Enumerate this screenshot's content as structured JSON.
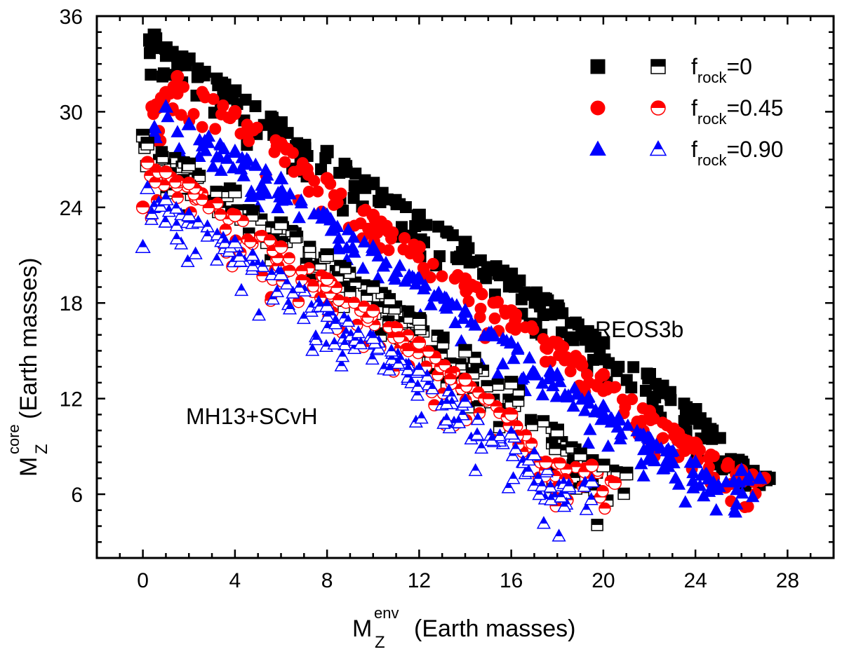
{
  "chart_data": {
    "type": "scatter",
    "xlabel": {
      "main": "M",
      "sub": "Z",
      "sup": "env",
      "rest": " (Earth masses)"
    },
    "ylabel": {
      "main": "M",
      "sub": "Z",
      "sup": "core",
      "rest": " (Earth masses)"
    },
    "xlim": [
      -2,
      30
    ],
    "ylim": [
      2,
      36
    ],
    "x_ticks": [
      "0",
      "4",
      "8",
      "12",
      "16",
      "20",
      "24",
      "28"
    ],
    "y_ticks": [
      "6",
      "12",
      "18",
      "24",
      "30",
      "36"
    ],
    "grid": false,
    "legend_position": "top-right",
    "annotations": [
      "REOS3b",
      "MH13+SCvH"
    ],
    "series": [
      {
        "name": "f_rock=0",
        "eos": "REOS3b",
        "marker": "square",
        "fill": "full",
        "color": "#000000",
        "x": [
          0.3,
          0.5,
          1.0,
          2.0,
          4.0,
          6.0,
          8.0,
          10.0,
          12.0,
          14.0,
          16.0,
          18.0,
          20.0,
          22.0,
          24.0,
          26.0,
          27.2
        ],
        "y": [
          34.5,
          34.8,
          34.0,
          33.3,
          31.3,
          29.3,
          27.5,
          25.5,
          23.5,
          21.8,
          19.8,
          17.8,
          15.5,
          13.5,
          11.3,
          8.0,
          7.0
        ]
      },
      {
        "name": "f_rock=0.45",
        "eos": "REOS3b",
        "marker": "circle",
        "fill": "full",
        "color": "#ff0000",
        "x": [
          0.4,
          1.0,
          1.5,
          4.0,
          6.0,
          8.0,
          10.0,
          12.0,
          14.0,
          16.0,
          18.0,
          20.0,
          22.0,
          24.0,
          26.0,
          27.0
        ],
        "y": [
          30.3,
          31.2,
          32.2,
          30.0,
          28.0,
          25.8,
          23.5,
          21.5,
          19.5,
          17.5,
          15.5,
          13.5,
          11.2,
          9.2,
          7.5,
          7.0
        ]
      },
      {
        "name": "f_rock=0.90",
        "eos": "REOS3b",
        "marker": "triangle",
        "fill": "full",
        "color": "#0000ff",
        "x": [
          0.5,
          1.0,
          2.0,
          4.0,
          6.0,
          8.0,
          10.0,
          12.0,
          14.0,
          16.0,
          18.0,
          20.0,
          22.0,
          24.0,
          25.0,
          26.0,
          26.8
        ],
        "y": [
          29.0,
          30.3,
          29.2,
          27.5,
          25.8,
          23.5,
          21.5,
          19.5,
          17.5,
          15.5,
          13.5,
          11.5,
          9.5,
          8.0,
          6.5,
          7.5,
          7.0
        ]
      },
      {
        "name": "f_rock=0",
        "eos": "MH13+SCvH",
        "marker": "square",
        "fill": "half",
        "color": "#000000",
        "x": [
          0.0,
          0.2,
          2.0,
          4.0,
          6.0,
          8.0,
          10.0,
          12.0,
          14.0,
          16.0,
          18.0,
          19.0,
          20.0,
          21.0
        ],
        "y": [
          28.5,
          28.0,
          26.7,
          25.0,
          23.0,
          21.0,
          19.0,
          17.0,
          15.0,
          13.0,
          10.0,
          8.5,
          7.8,
          7.3
        ]
      },
      {
        "name": "f_rock=0.45",
        "eos": "MH13+SCvH",
        "marker": "circle",
        "fill": "half",
        "color": "#ff0000",
        "x": [
          0.0,
          0.2,
          1.0,
          2.0,
          4.0,
          6.0,
          8.0,
          10.0,
          12.0,
          14.0,
          16.0,
          17.5,
          19.5,
          20.5
        ],
        "y": [
          24.0,
          26.8,
          26.2,
          25.5,
          23.5,
          21.5,
          19.5,
          17.5,
          15.5,
          13.2,
          11.0,
          8.0,
          7.8,
          6.7
        ]
      },
      {
        "name": "f_rock=0.90",
        "eos": "MH13+SCvH",
        "marker": "triangle",
        "fill": "half",
        "color": "#0000ff",
        "x": [
          0.0,
          0.2,
          1.0,
          2.0,
          4.0,
          6.0,
          8.0,
          10.0,
          12.0,
          14.0,
          16.0,
          17.0,
          18.5,
          19.5
        ],
        "y": [
          21.5,
          25.2,
          24.5,
          23.5,
          21.8,
          19.8,
          17.8,
          15.8,
          13.8,
          11.8,
          9.8,
          8.5,
          6.5,
          6.8
        ]
      }
    ],
    "legend": {
      "rows": [
        {
          "label_main": "f",
          "label_sub": "rock",
          "label_rest": "=0",
          "color": "#000000",
          "marker": "square"
        },
        {
          "label_main": "f",
          "label_sub": "rock",
          "label_rest": "=0.45",
          "color": "#ff0000",
          "marker": "circle"
        },
        {
          "label_main": "f",
          "label_sub": "rock",
          "label_rest": "=0.90",
          "color": "#0000ff",
          "marker": "triangle"
        }
      ]
    }
  }
}
